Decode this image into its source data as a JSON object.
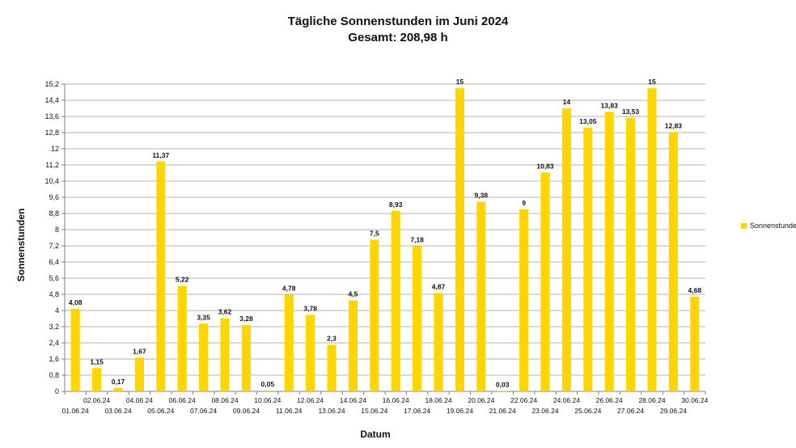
{
  "chart_data": {
    "type": "bar",
    "title": "Tägliche Sonnenstunden im Juni 2024",
    "subtitle": "Gesamt: 208,98 h",
    "xlabel": "Datum",
    "ylabel": "Sonnenstunden",
    "ylim": [
      0,
      15.2
    ],
    "y_ticks": [
      "0",
      "0,8",
      "1,6",
      "2,4",
      "3,2",
      "4",
      "4,8",
      "5,6",
      "6,4",
      "7,2",
      "8",
      "8,8",
      "9,6",
      "10,4",
      "11,2",
      "12",
      "12,8",
      "13,6",
      "14,4",
      "15,2"
    ],
    "y_tick_values": [
      0,
      0.8,
      1.6,
      2.4,
      3.2,
      4,
      4.8,
      5.6,
      6.4,
      7.2,
      8,
      8.8,
      9.6,
      10.4,
      11.2,
      12,
      12.8,
      13.6,
      14.4,
      15.2
    ],
    "grid": "horizontal",
    "legend_position": "right",
    "categories": [
      "01.06.24",
      "02.06.24",
      "03.06.24",
      "04.06.24",
      "05.06.24",
      "06.06.24",
      "07.06.24",
      "08.06.24",
      "09.06.24",
      "10.06.24",
      "11.06.24",
      "12.06.24",
      "13.06.24",
      "14.06.24",
      "15.06.24",
      "16.06.24",
      "17.06.24",
      "18.06.24",
      "19.06.24",
      "20.06.24",
      "21.06.24",
      "22.06.24",
      "23.06.24",
      "24.06.24",
      "25.06.24",
      "26.06.24",
      "27.06.24",
      "28.06.24",
      "29.06.24",
      "30.06.24"
    ],
    "series": [
      {
        "name": "Sonnenstunden",
        "color": "#ffd500",
        "values": [
          4.08,
          1.15,
          0.17,
          1.67,
          11.37,
          5.22,
          3.35,
          3.62,
          3.28,
          0.05,
          4.78,
          3.78,
          2.3,
          4.5,
          7.5,
          8.93,
          7.18,
          4.87,
          15,
          9.38,
          0.03,
          9,
          10.83,
          14,
          13.05,
          13.83,
          13.53,
          15,
          12.83,
          4.68
        ],
        "labels": [
          "4,08",
          "1,15",
          "0,17",
          "1,67",
          "11,37",
          "5,22",
          "3,35",
          "3,62",
          "3,28",
          "0,05",
          "4,78",
          "3,78",
          "2,3",
          "4,5",
          "7,5",
          "8,93",
          "7,18",
          "4,87",
          "15",
          "9,38",
          "0,03",
          "9",
          "10,83",
          "14",
          "13,05",
          "13,83",
          "13,53",
          "15",
          "12,83",
          "4,68"
        ]
      }
    ]
  }
}
